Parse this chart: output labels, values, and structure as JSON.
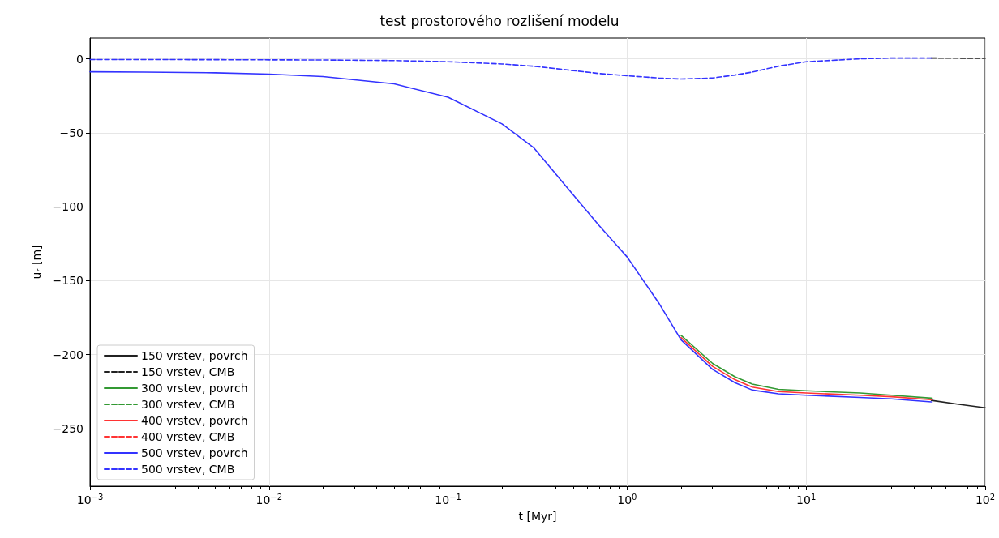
{
  "chart_data": {
    "type": "line",
    "title": "test prostorového rozlišení modelu",
    "xlabel": "t [Myr]",
    "ylabel": "u$_{r}$ [m]",
    "log": "x",
    "grid": true,
    "legend": "bottom left",
    "marker": "none",
    "xlim": [
      0.001,
      100
    ],
    "xticks": [
      {
        "value": 0.001,
        "label": "10$^{−3}$"
      },
      {
        "value": 0.01,
        "label": "10$^{−2}$"
      },
      {
        "value": 0.1,
        "label": "10$^{−1}$"
      },
      {
        "value": 1,
        "label": "10$^{0}$"
      },
      {
        "value": 10,
        "label": "10$^{1}$"
      },
      {
        "value": 100,
        "label": "10$^{2}$"
      }
    ],
    "ylim": [
      -289,
      14
    ],
    "yticks": [
      {
        "value": -250,
        "label": "−250"
      },
      {
        "value": -200,
        "label": "−200"
      },
      {
        "value": -150,
        "label": "−150"
      },
      {
        "value": -100,
        "label": "−100"
      },
      {
        "value": -50,
        "label": "−50"
      },
      0
    ],
    "x": [
      0.001,
      0.002,
      0.005,
      0.01,
      0.02,
      0.05,
      0.1,
      0.2,
      0.3,
      0.5,
      0.7,
      1,
      1.5,
      2,
      3,
      4,
      5,
      7,
      10,
      20,
      30,
      50
    ],
    "series": [
      {
        "name": "150 vrstev, povrch",
        "color": "#222222",
        "line_style": "solid",
        "x": [
          50,
          70,
          100
        ],
        "values": [
          -231,
          -233.5,
          -236
        ]
      },
      {
        "name": "150 vrstev, CMB",
        "color": "#222222",
        "line_style": "dashed",
        "x": [
          50,
          70,
          100
        ],
        "values": [
          0.5,
          0.4,
          0.3
        ]
      },
      {
        "name": "300 vrstev, povrch",
        "color": "#339933",
        "line_style": "solid",
        "values": [
          null,
          null,
          null,
          null,
          null,
          null,
          null,
          null,
          null,
          null,
          null,
          null,
          null,
          -187,
          -206,
          -215,
          -220,
          -223.5,
          -224.5,
          -226,
          -227.5,
          -229.5
        ]
      },
      {
        "name": "300 vrstev, CMB",
        "color": "#339933",
        "line_style": "dashed",
        "values": [
          null,
          null,
          null,
          null,
          null,
          null,
          null,
          null,
          null,
          null,
          null,
          null,
          null,
          null,
          null,
          null,
          null,
          null,
          null,
          null,
          null,
          null
        ]
      },
      {
        "name": "400 vrstev, povrch",
        "color": "#ff3333",
        "line_style": "solid",
        "values": [
          null,
          null,
          null,
          null,
          null,
          null,
          null,
          null,
          null,
          null,
          null,
          null,
          null,
          -188.5,
          -208,
          -217,
          -222,
          -225,
          -226,
          -227.5,
          -228.5,
          -230.5
        ]
      },
      {
        "name": "400 vrstev, CMB",
        "color": "#ff3333",
        "line_style": "dashed",
        "values": [
          null,
          null,
          null,
          null,
          null,
          null,
          null,
          null,
          null,
          null,
          null,
          null,
          null,
          null,
          null,
          null,
          null,
          null,
          null,
          null,
          null,
          null
        ]
      },
      {
        "name": "500 vrstev, povrch",
        "color": "#3333ff",
        "line_style": "solid",
        "values": [
          -8.8,
          -9,
          -9.5,
          -10.4,
          -12,
          -17,
          -26,
          -44,
          -60,
          -92,
          -113,
          -134,
          -165,
          -190,
          -210,
          -219,
          -224,
          -226.5,
          -227.5,
          -229,
          -230,
          -232
        ]
      },
      {
        "name": "500 vrstev, CMB",
        "color": "#3333ff",
        "line_style": "dashed",
        "values": [
          -0.5,
          -0.5,
          -0.6,
          -0.7,
          -0.8,
          -1.2,
          -2,
          -3.5,
          -5,
          -8,
          -10,
          -11.5,
          -13,
          -13.7,
          -13,
          -11,
          -9,
          -5,
          -2,
          0,
          0.5,
          0.5
        ]
      }
    ]
  }
}
